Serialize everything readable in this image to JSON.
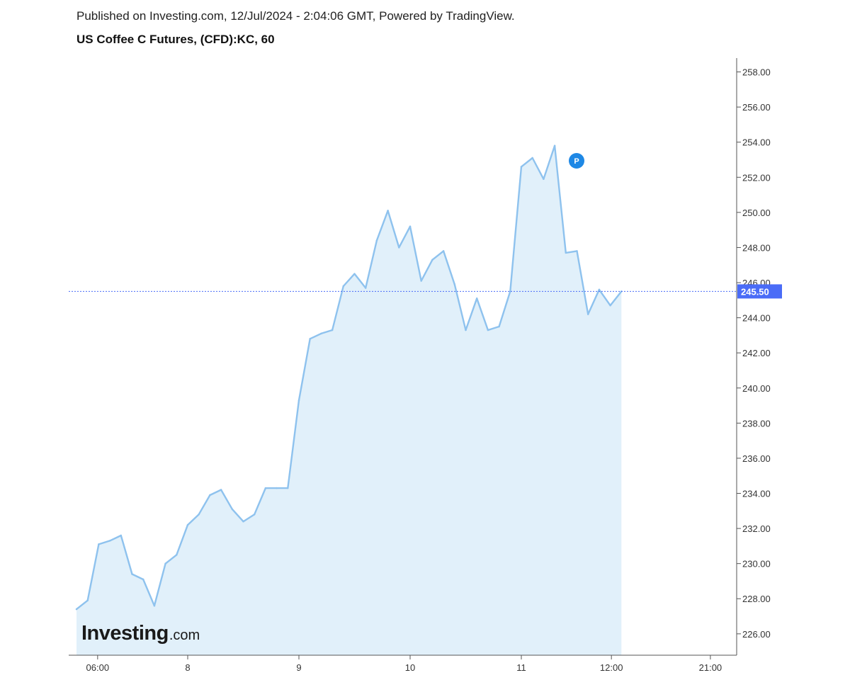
{
  "header": {
    "published": "Published on Investing.com, 12/Jul/2024 - 2:04:06 GMT, Powered by TradingView.",
    "title": "US Coffee C Futures, (CFD):KC, 60"
  },
  "logo": {
    "main": "Investing",
    "suffix": ".com"
  },
  "marker": {
    "label": "P",
    "color": "#1e88e5"
  },
  "colors": {
    "line": "#8ec2ee",
    "fill": "#e1f0fa",
    "last_price": "#4a6cf7",
    "axis": "#555555"
  },
  "chart_data": {
    "type": "area",
    "title": "US Coffee C Futures, (CFD):KC, 60",
    "xlabel": "",
    "ylabel": "",
    "ylim": [
      224.7,
      258.6
    ],
    "y_ticks": [
      "226.00",
      "228.00",
      "230.00",
      "232.00",
      "234.00",
      "236.00",
      "238.00",
      "240.00",
      "242.00",
      "244.00",
      "246.00",
      "248.00",
      "250.00",
      "252.00",
      "254.00",
      "256.00",
      "258.00"
    ],
    "x_ticks": [
      {
        "label": "06:00",
        "bar": 1.9
      },
      {
        "label": "8",
        "bar": 10
      },
      {
        "label": "9",
        "bar": 20
      },
      {
        "label": "10",
        "bar": 30
      },
      {
        "label": "11",
        "bar": 40
      },
      {
        "label": "12:00",
        "bar": 48.1
      },
      {
        "label": "21:00",
        "bar": 57
      }
    ],
    "last_price": 245.5,
    "last_price_label": "245.50",
    "grid": false,
    "series": [
      {
        "values": [
          227.4,
          227.9,
          231.1,
          231.3,
          231.6,
          229.4,
          229.1,
          227.6,
          230.0,
          230.5,
          232.2,
          232.8,
          233.9,
          234.2,
          233.1,
          232.4,
          232.8,
          234.3,
          234.3,
          234.3,
          239.3,
          242.8,
          243.1,
          243.3,
          245.8,
          246.5,
          245.7,
          248.4,
          250.1,
          248.0,
          249.2,
          246.1,
          247.3,
          247.8,
          245.9,
          243.3,
          245.1,
          243.3,
          243.5,
          245.5,
          252.6,
          253.1,
          251.9,
          253.8,
          247.7,
          247.8,
          244.2,
          245.6,
          244.7,
          245.5
        ]
      }
    ]
  }
}
